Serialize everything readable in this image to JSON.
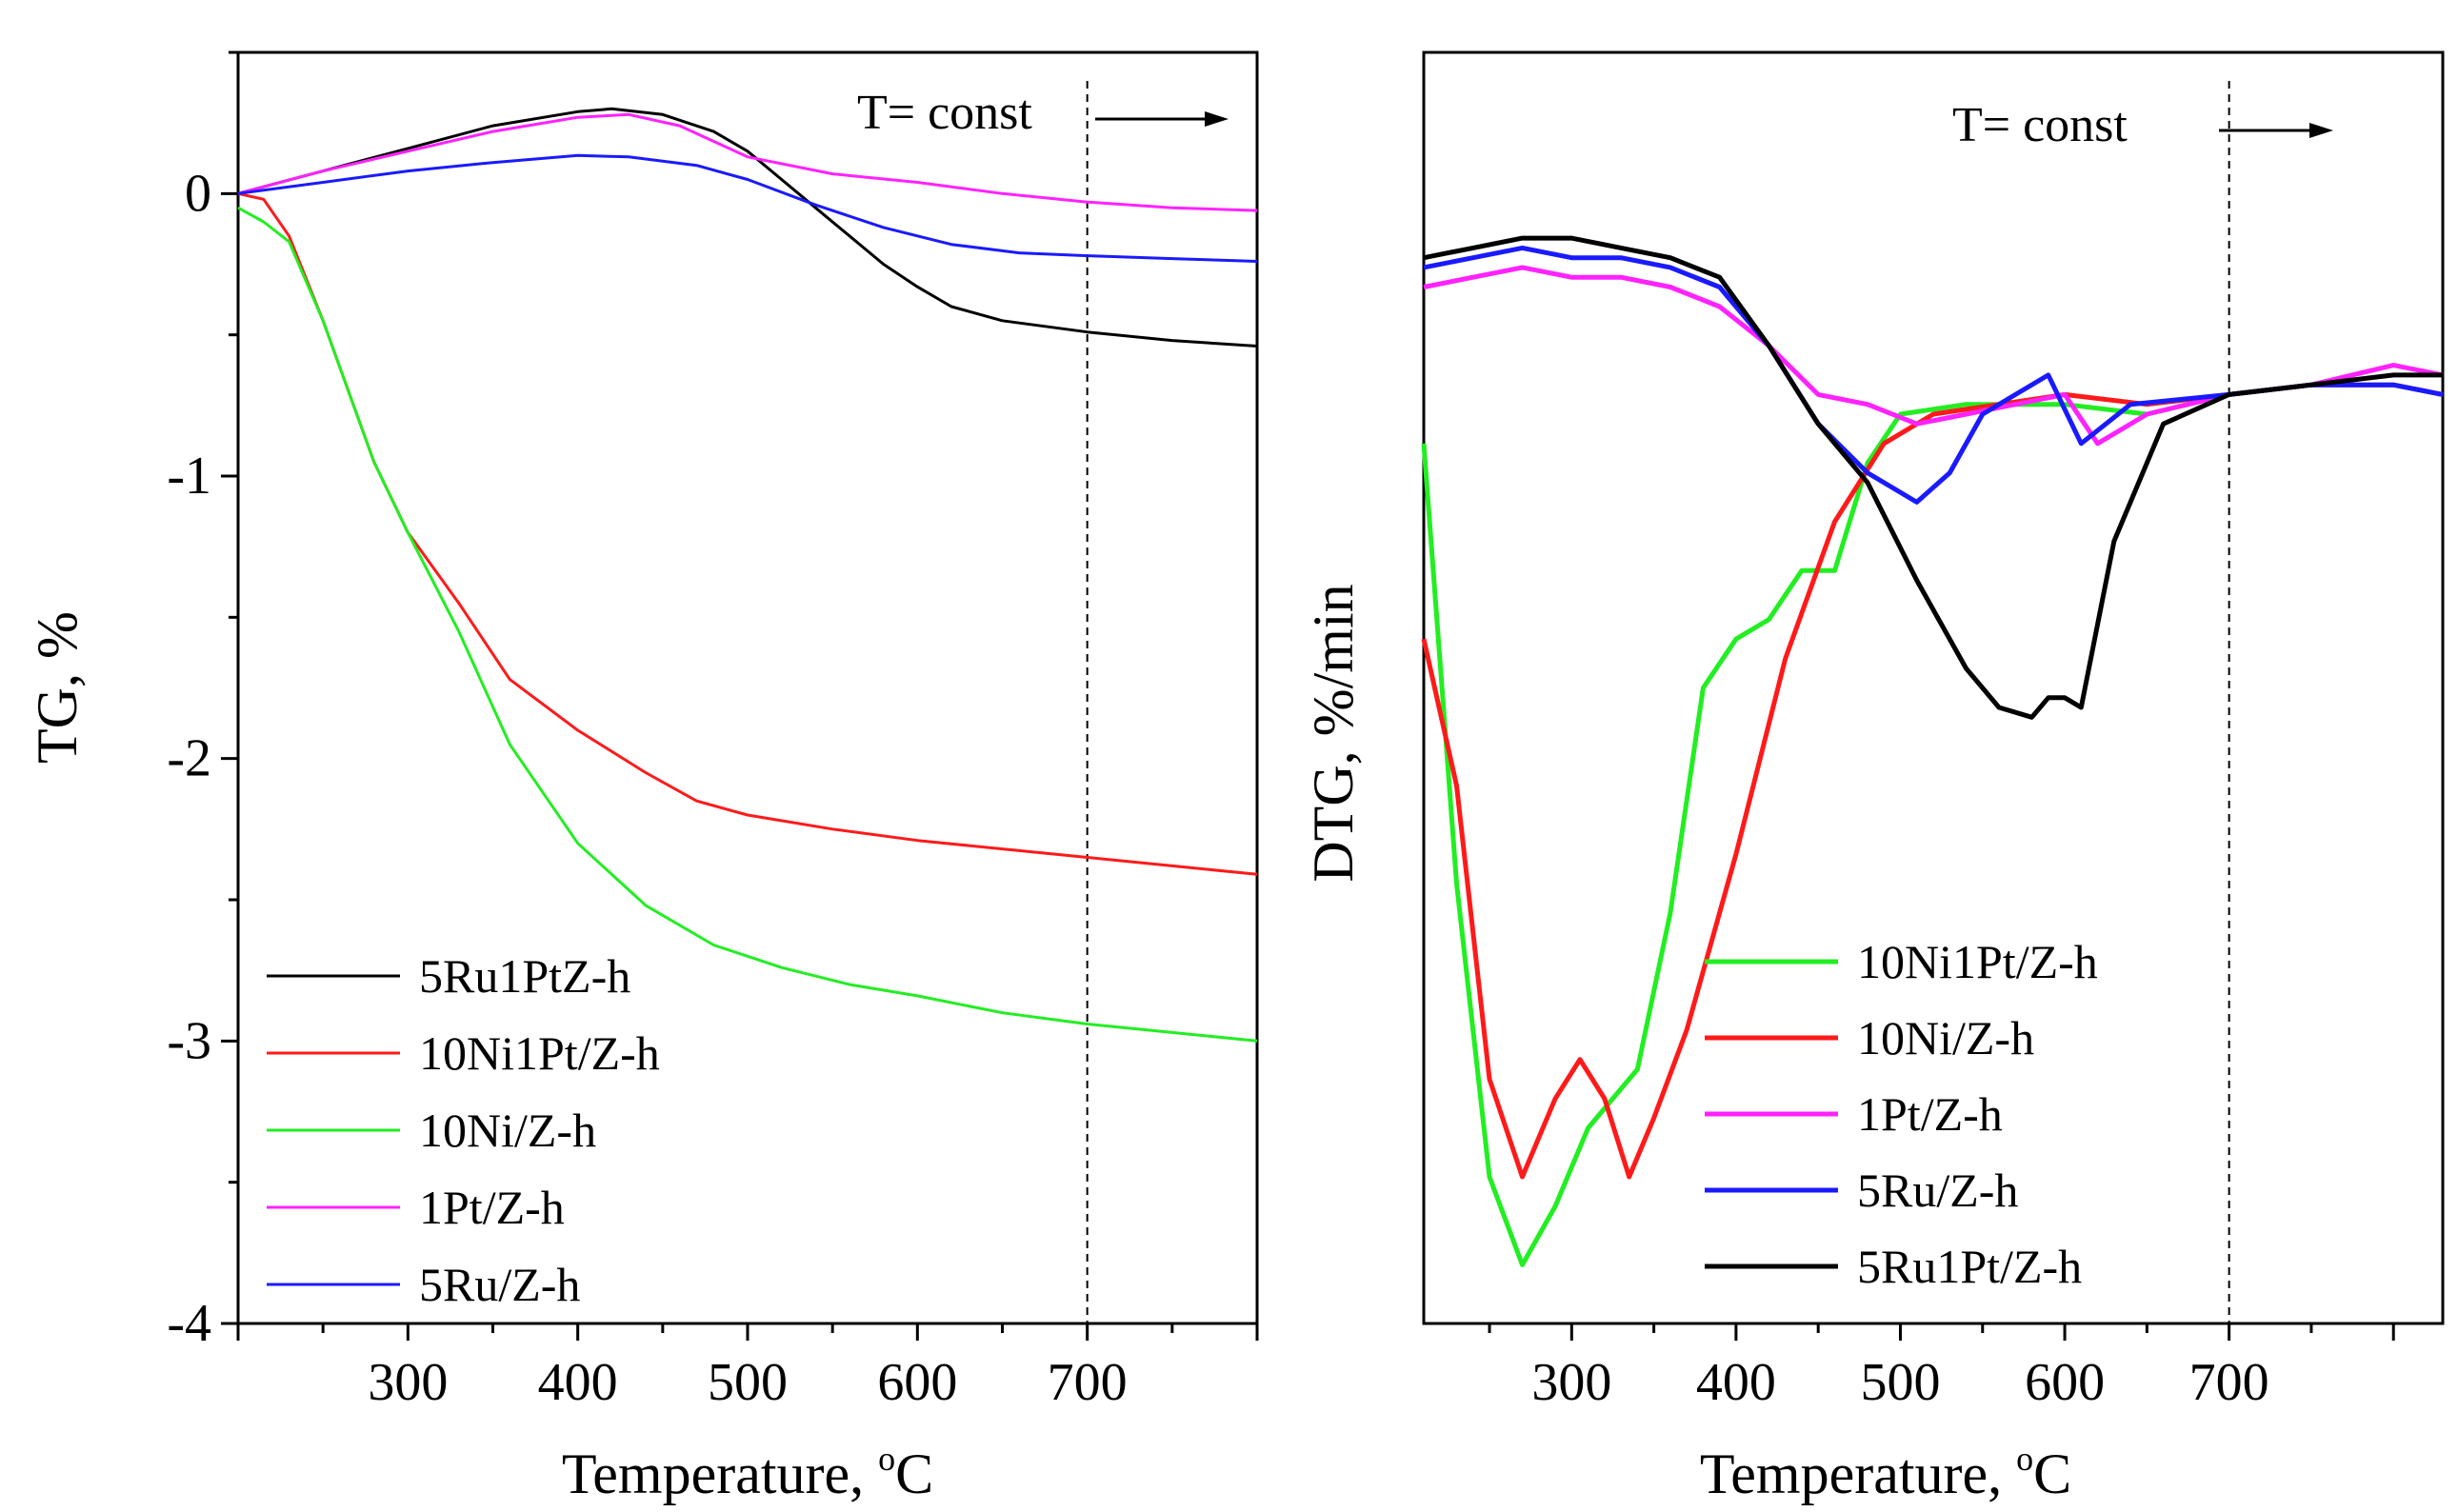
{
  "figure": {
    "panel_left": {
      "ylabel": "TG, %",
      "xlabel_text": "Temperature, ",
      "xlabel_deg": "o",
      "xlabel_unit": "C",
      "note": "T= const"
    },
    "panel_right": {
      "ylabel": "DTG, %/min",
      "xlabel_text": "Temperature, ",
      "xlabel_deg": "o",
      "xlabel_unit": "C",
      "note": "T= const"
    }
  },
  "colors": {
    "black": "#000000",
    "red": "#ff1a1a",
    "green": "#22ee22",
    "magenta": "#ff22ff",
    "blue": "#1a1aff"
  },
  "chart_data": [
    {
      "type": "line",
      "title": "",
      "xlabel": "Temperature, oC",
      "ylabel": "TG, %",
      "xlim": [
        200,
        800
      ],
      "ylim": [
        -4,
        0.5
      ],
      "xticks": [
        300,
        400,
        500,
        600,
        700
      ],
      "yticks": [
        0,
        -1,
        -2,
        -3,
        -4
      ],
      "ytick_labels": [
        "0",
        "-1",
        "-2",
        "-3",
        "-4"
      ],
      "isothermal_marker_x": 700,
      "note": "T= const",
      "legend_position": "bottom-left",
      "series": [
        {
          "name": "5Ru1PtZ-h",
          "color": "#000000",
          "x": [
            200,
            250,
            300,
            350,
            400,
            420,
            450,
            480,
            500,
            520,
            540,
            560,
            580,
            600,
            620,
            650,
            700,
            750,
            800
          ],
          "y": [
            0,
            0.08,
            0.16,
            0.24,
            0.29,
            0.3,
            0.28,
            0.22,
            0.15,
            0.05,
            -0.05,
            -0.15,
            -0.25,
            -0.33,
            -0.4,
            -0.45,
            -0.49,
            -0.52,
            -0.54
          ]
        },
        {
          "name": "10Ni1Pt/Z-h",
          "color": "#ff1a1a",
          "x": [
            200,
            215,
            230,
            250,
            280,
            300,
            330,
            360,
            400,
            440,
            470,
            500,
            550,
            600,
            650,
            700,
            750,
            800
          ],
          "y": [
            0,
            -0.02,
            -0.15,
            -0.45,
            -0.95,
            -1.2,
            -1.45,
            -1.72,
            -1.9,
            -2.05,
            -2.15,
            -2.2,
            -2.25,
            -2.29,
            -2.32,
            -2.35,
            -2.38,
            -2.41
          ]
        },
        {
          "name": "10Ni/Z-h",
          "color": "#22ee22",
          "x": [
            200,
            215,
            230,
            250,
            280,
            300,
            330,
            360,
            400,
            440,
            480,
            520,
            560,
            600,
            650,
            700,
            750,
            800
          ],
          "y": [
            -0.05,
            -0.1,
            -0.17,
            -0.45,
            -0.95,
            -1.2,
            -1.55,
            -1.95,
            -2.3,
            -2.52,
            -2.66,
            -2.74,
            -2.8,
            -2.84,
            -2.9,
            -2.94,
            -2.97,
            -3.0
          ]
        },
        {
          "name": "1Pt/Z-h",
          "color": "#ff22ff",
          "x": [
            200,
            250,
            300,
            350,
            400,
            430,
            460,
            500,
            550,
            600,
            650,
            700,
            750,
            800
          ],
          "y": [
            0,
            0.08,
            0.15,
            0.22,
            0.27,
            0.28,
            0.24,
            0.13,
            0.07,
            0.04,
            0.0,
            -0.03,
            -0.05,
            -0.06
          ]
        },
        {
          "name": "5Ru/Z-h",
          "color": "#1a1aff",
          "x": [
            200,
            250,
            300,
            350,
            400,
            430,
            470,
            500,
            540,
            580,
            620,
            660,
            700,
            750,
            800
          ],
          "y": [
            0,
            0.04,
            0.08,
            0.11,
            0.135,
            0.13,
            0.1,
            0.05,
            -0.04,
            -0.12,
            -0.18,
            -0.21,
            -0.22,
            -0.23,
            -0.24
          ]
        }
      ]
    },
    {
      "type": "line",
      "title": "",
      "xlabel": "Temperature, oC",
      "ylabel": "DTG, %/min",
      "xlim": [
        210,
        830
      ],
      "ylim": [
        -1.2,
        0.1
      ],
      "xticks": [
        300,
        400,
        500,
        600,
        700
      ],
      "isothermal_marker_x": 700,
      "note": "T= const",
      "legend_position": "bottom-right",
      "series": [
        {
          "name": "10Ni1Pt/Z-h",
          "color": "#22ee22",
          "x": [
            210,
            230,
            250,
            270,
            290,
            310,
            340,
            360,
            380,
            400,
            420,
            440,
            460,
            480,
            500,
            540,
            600,
            650,
            700,
            750,
            800,
            830
          ],
          "y": [
            -0.3,
            -0.75,
            -1.05,
            -1.14,
            -1.08,
            -1.0,
            -0.94,
            -0.78,
            -0.55,
            -0.5,
            -0.48,
            -0.43,
            -0.43,
            -0.32,
            -0.27,
            -0.26,
            -0.26,
            -0.27,
            -0.25,
            -0.24,
            -0.24,
            -0.25
          ]
        },
        {
          "name": "10Ni/Z-h",
          "color": "#ff1a1a",
          "x": [
            210,
            230,
            250,
            270,
            290,
            305,
            320,
            335,
            350,
            370,
            400,
            430,
            460,
            490,
            520,
            560,
            600,
            650,
            700,
            750,
            800,
            830
          ],
          "y": [
            -0.5,
            -0.65,
            -0.95,
            -1.05,
            -0.97,
            -0.93,
            -0.97,
            -1.05,
            -0.99,
            -0.9,
            -0.72,
            -0.52,
            -0.38,
            -0.3,
            -0.27,
            -0.26,
            -0.25,
            -0.26,
            -0.25,
            -0.24,
            -0.24,
            -0.25
          ]
        },
        {
          "name": "1Pt/Z-h",
          "color": "#ff22ff",
          "x": [
            210,
            240,
            270,
            300,
            330,
            360,
            390,
            420,
            450,
            480,
            510,
            540,
            570,
            600,
            620,
            650,
            700,
            750,
            800,
            830
          ],
          "y": [
            -0.14,
            -0.13,
            -0.12,
            -0.13,
            -0.13,
            -0.14,
            -0.16,
            -0.2,
            -0.25,
            -0.26,
            -0.28,
            -0.27,
            -0.26,
            -0.25,
            -0.3,
            -0.27,
            -0.25,
            -0.24,
            -0.22,
            -0.23
          ]
        },
        {
          "name": "5Ru/Z-h",
          "color": "#1a1aff",
          "x": [
            210,
            240,
            270,
            300,
            330,
            360,
            390,
            420,
            450,
            480,
            510,
            530,
            550,
            570,
            590,
            610,
            640,
            700,
            750,
            800,
            830
          ],
          "y": [
            -0.12,
            -0.11,
            -0.1,
            -0.11,
            -0.11,
            -0.12,
            -0.14,
            -0.2,
            -0.28,
            -0.33,
            -0.36,
            -0.33,
            -0.27,
            -0.25,
            -0.23,
            -0.3,
            -0.26,
            -0.25,
            -0.24,
            -0.24,
            -0.25
          ]
        },
        {
          "name": "5Ru1Pt/Z-h",
          "color": "#000000",
          "x": [
            210,
            240,
            270,
            300,
            330,
            360,
            390,
            420,
            450,
            480,
            510,
            540,
            560,
            580,
            590,
            600,
            610,
            630,
            660,
            700,
            750,
            800,
            830
          ],
          "y": [
            -0.11,
            -0.1,
            -0.09,
            -0.09,
            -0.1,
            -0.11,
            -0.13,
            -0.2,
            -0.28,
            -0.34,
            -0.44,
            -0.53,
            -0.57,
            -0.58,
            -0.56,
            -0.56,
            -0.57,
            -0.4,
            -0.28,
            -0.25,
            -0.24,
            -0.23,
            -0.23
          ]
        }
      ]
    }
  ]
}
